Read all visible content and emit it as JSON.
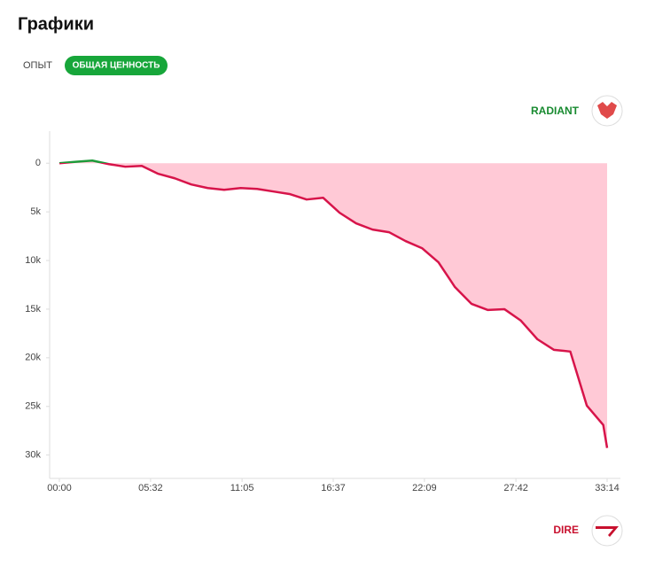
{
  "header": {
    "title": "Графики"
  },
  "tabs": [
    "ОПЫТ",
    "ОБЩАЯ ЦЕННОСТЬ"
  ],
  "teams": {
    "top": "RADIANT",
    "bottom": "DIRE"
  },
  "chart_data": {
    "type": "area",
    "x": [
      0,
      60,
      120,
      180,
      240,
      300,
      360,
      420,
      480,
      540,
      600,
      660,
      720,
      780,
      840,
      900,
      960,
      1020,
      1080,
      1140,
      1200,
      1260,
      1320,
      1380,
      1440,
      1500,
      1560,
      1620,
      1680,
      1740,
      1800,
      1860,
      1920,
      1980,
      1994
    ],
    "values": [
      0,
      -150,
      -270,
      90,
      360,
      270,
      1090,
      1550,
      2180,
      2550,
      2730,
      2550,
      2640,
      2910,
      3180,
      3730,
      3550,
      5090,
      6180,
      6820,
      7090,
      8000,
      8730,
      10180,
      12730,
      14450,
      15090,
      15000,
      16180,
      18090,
      19180,
      19360,
      24910,
      26910,
      29270
    ],
    "color": "#d7144a",
    "negative_color": "#1e9a3a",
    "fill": "#ffc9d6",
    "xlim": [
      0,
      1994
    ],
    "xticks": [
      {
        "value": 0,
        "label": "00:00"
      },
      {
        "value": 332,
        "label": "05:32"
      },
      {
        "value": 665,
        "label": "11:05"
      },
      {
        "value": 997,
        "label": "16:37"
      },
      {
        "value": 1329,
        "label": "22:09"
      },
      {
        "value": 1662,
        "label": "27:42"
      },
      {
        "value": 1994,
        "label": "33:14"
      }
    ],
    "ylim": [
      -3300,
      32400
    ],
    "yticks": [
      0,
      {
        "value": 5000,
        "label": "5k"
      },
      {
        "value": 10000,
        "label": "10k"
      },
      {
        "value": 15000,
        "label": "15k"
      },
      {
        "value": 20000,
        "label": "20k"
      },
      {
        "value": 25000,
        "label": "25k"
      },
      {
        "value": 30000,
        "label": "30k"
      }
    ],
    "inverted": true
  }
}
